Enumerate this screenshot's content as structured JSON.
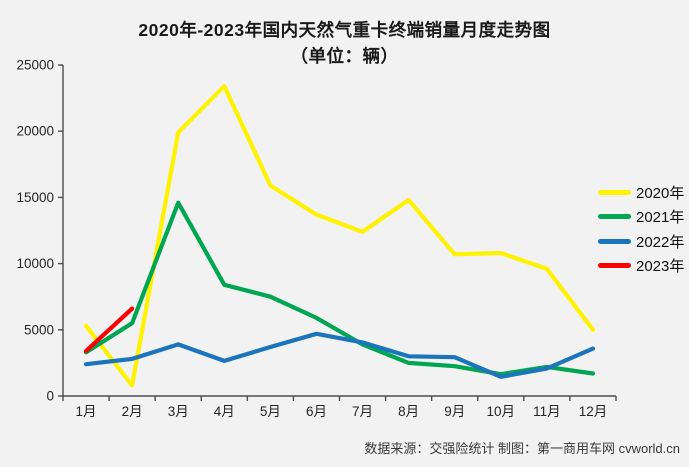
{
  "page": {
    "background": "#f2f2f2",
    "title_line1": "2020年-2023年国内天然气重卡终端销量月度走势图",
    "title_line2": "（单位：辆）",
    "footer": "数据来源：交强险统计  制图：第一商用车网 cvworld.cn"
  },
  "axis": {
    "color": "#4d4d4d",
    "label_color": "#262626"
  },
  "chart_data": {
    "type": "line",
    "title": "2020年-2023年国内天然气重卡终端销量月度走势图",
    "subtitle": "（单位：辆）",
    "xlabel": "",
    "ylabel": "",
    "ylim": [
      0,
      25000
    ],
    "ytick_step": 5000,
    "grid": false,
    "legend_position": "right",
    "categories": [
      "1月",
      "2月",
      "3月",
      "4月",
      "5月",
      "6月",
      "7月",
      "8月",
      "9月",
      "10月",
      "11月",
      "12月"
    ],
    "series": [
      {
        "name": "2020年",
        "color": "#FFF200",
        "values": [
          5300,
          800,
          19900,
          23400,
          15900,
          13700,
          12400,
          14800,
          10700,
          10800,
          9600,
          5000
        ]
      },
      {
        "name": "2021年",
        "color": "#00A651",
        "values": [
          3300,
          5500,
          14600,
          8400,
          7500,
          5900,
          3900,
          2500,
          2250,
          1650,
          2200,
          1700
        ]
      },
      {
        "name": "2022年",
        "color": "#1C75BC",
        "values": [
          2400,
          2800,
          3900,
          2650,
          3700,
          4700,
          4050,
          3000,
          2930,
          1450,
          2080,
          3580
        ]
      },
      {
        "name": "2023年",
        "color": "#FF0000",
        "values": [
          3400,
          6600,
          null,
          null,
          null,
          null,
          null,
          null,
          null,
          null,
          null,
          null
        ]
      }
    ]
  }
}
